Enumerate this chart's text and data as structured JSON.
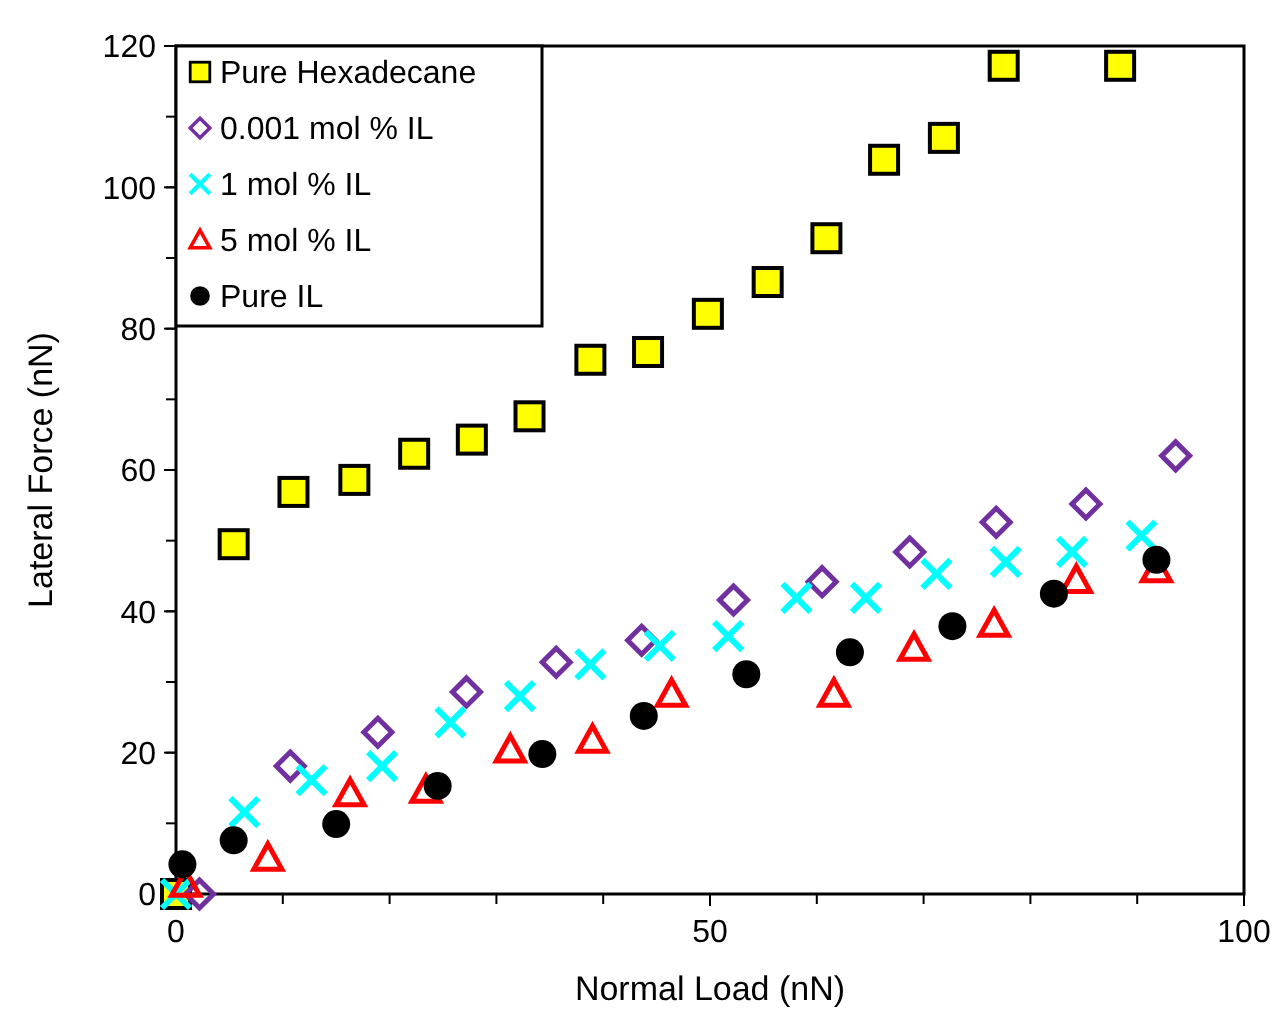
{
  "chart_data": {
    "type": "scatter",
    "xlabel": "Normal Load (nN)",
    "ylabel": "Lateral Force (nN)",
    "xlim": [
      0,
      100
    ],
    "xticks": [
      0,
      50,
      100
    ],
    "ylim": [
      0,
      120
    ],
    "yticks": [
      0,
      20,
      40,
      60,
      80,
      100,
      120
    ],
    "grid": false,
    "legend": "top left",
    "series": [
      {
        "name": "Pure Hexadecane",
        "color": "#ffff00",
        "marker": "square",
        "x": [
          0,
          5.4,
          11.0,
          16.7,
          22.3,
          27.7,
          33.1,
          38.8,
          44.2,
          49.8,
          55.4,
          60.9,
          66.3,
          71.9,
          77.5,
          88.4
        ],
        "values": [
          0,
          49.5,
          56.9,
          58.6,
          62.3,
          64.3,
          67.6,
          75.6,
          76.7,
          82.1,
          86.6,
          92.8,
          103.9,
          107.0,
          117.2,
          117.2
        ]
      },
      {
        "name": "0.001 mol % IL",
        "color": "#7030a0",
        "marker": "diamond",
        "x": [
          2.2,
          10.7,
          18.9,
          27.2,
          35.6,
          43.6,
          52.2,
          60.5,
          68.7,
          76.8,
          85.2,
          93.6
        ],
        "values": [
          0,
          18.1,
          22.9,
          28.6,
          32.8,
          35.9,
          41.6,
          44.2,
          48.4,
          52.6,
          55.2,
          62.0
        ]
      },
      {
        "name": "1 mol % IL",
        "color": "#00ffff",
        "marker": "cross",
        "x": [
          0,
          6.4,
          12.7,
          19.3,
          25.7,
          32.2,
          38.8,
          45.3,
          51.7,
          58.1,
          64.6,
          71.2,
          77.7,
          83.9,
          90.4
        ],
        "values": [
          0,
          11.6,
          16.1,
          18.1,
          24.3,
          28.0,
          32.5,
          35.1,
          36.5,
          41.9,
          41.9,
          45.3,
          47.0,
          48.4,
          50.7
        ]
      },
      {
        "name": "5 mol % IL",
        "color": "#ff0000",
        "marker": "triangle",
        "x": [
          0.9,
          8.6,
          16.3,
          23.4,
          31.3,
          39.0,
          46.4,
          61.6,
          69.1,
          76.6,
          84.3,
          91.8
        ],
        "values": [
          1.4,
          5.1,
          14.2,
          14.7,
          20.4,
          21.8,
          28.3,
          28.3,
          34.8,
          38.2,
          44.4,
          45.9
        ]
      },
      {
        "name": "Pure IL",
        "color": "#000000",
        "marker": "circle",
        "x": [
          0.6,
          5.4,
          15.0,
          24.5,
          34.3,
          43.8,
          53.4,
          63.1,
          72.7,
          82.2,
          91.8
        ],
        "values": [
          4.2,
          7.6,
          9.9,
          15.3,
          19.8,
          25.2,
          31.1,
          34.2,
          37.9,
          42.5,
          47.3
        ]
      }
    ]
  }
}
